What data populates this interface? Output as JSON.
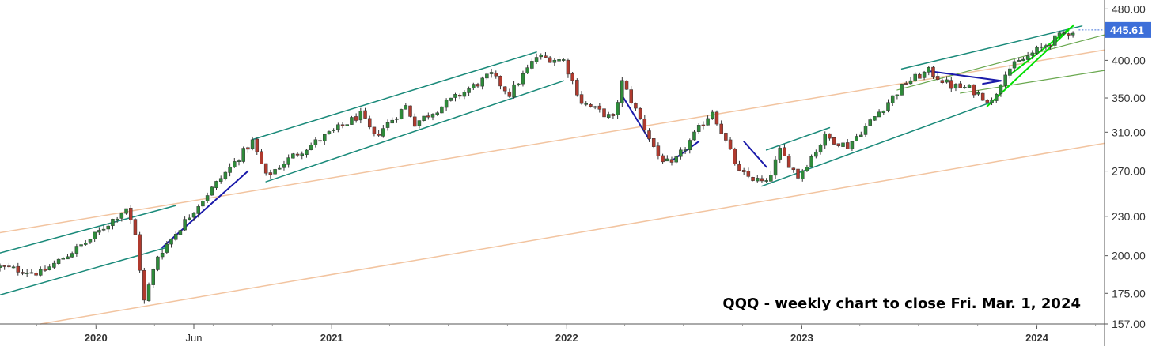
{
  "chart_data": {
    "type": "candlestick",
    "title": "",
    "annotation": "QQQ - weekly chart to close Fri. Mar. 1, 2024",
    "xlabel": "",
    "ylabel": "",
    "y_scale": "log",
    "ylim": [
      157,
      490
    ],
    "xlim": [
      "2019-08-05",
      "2024-04-15"
    ],
    "grid": false,
    "y_ticks": [
      "480.00",
      "400.00",
      "350.00",
      "310.00",
      "270.00",
      "230.00",
      "200.00",
      "175.00",
      "157.00"
    ],
    "x_ticks": [
      {
        "label": "2020",
        "date": "2020-01-01",
        "major": true
      },
      {
        "label": "Jun",
        "date": "2020-06-01",
        "major": false
      },
      {
        "label": "2021",
        "date": "2021-01-01",
        "major": true
      },
      {
        "label": "2022",
        "date": "2022-01-01",
        "major": true
      },
      {
        "label": "2023",
        "date": "2023-01-01",
        "major": true
      },
      {
        "label": "2024",
        "date": "2024-01-01",
        "major": true
      }
    ],
    "last_price": {
      "label": "445.61",
      "value": 445.61
    },
    "price_anchors": [
      {
        "date": "2019-08-05",
        "close": 192
      },
      {
        "date": "2019-10-07",
        "close": 188
      },
      {
        "date": "2019-12-23",
        "close": 212
      },
      {
        "date": "2020-02-17",
        "close": 237
      },
      {
        "date": "2020-03-02",
        "close": 215
      },
      {
        "date": "2020-03-16",
        "close": 170
      },
      {
        "date": "2020-04-06",
        "close": 200
      },
      {
        "date": "2020-06-08",
        "close": 240
      },
      {
        "date": "2020-08-31",
        "close": 300
      },
      {
        "date": "2020-09-21",
        "close": 265
      },
      {
        "date": "2020-11-02",
        "close": 285
      },
      {
        "date": "2021-02-15",
        "close": 330
      },
      {
        "date": "2021-03-08",
        "close": 305
      },
      {
        "date": "2021-04-26",
        "close": 340
      },
      {
        "date": "2021-05-10",
        "close": 320
      },
      {
        "date": "2021-09-06",
        "close": 380
      },
      {
        "date": "2021-10-04",
        "close": 355
      },
      {
        "date": "2021-11-15",
        "close": 405
      },
      {
        "date": "2021-12-27",
        "close": 400
      },
      {
        "date": "2022-01-24",
        "close": 345
      },
      {
        "date": "2022-03-14",
        "close": 325
      },
      {
        "date": "2022-03-28",
        "close": 370
      },
      {
        "date": "2022-05-23",
        "close": 285
      },
      {
        "date": "2022-06-13",
        "close": 275
      },
      {
        "date": "2022-08-15",
        "close": 335
      },
      {
        "date": "2022-09-26",
        "close": 268
      },
      {
        "date": "2022-11-07",
        "close": 258
      },
      {
        "date": "2022-11-28",
        "close": 290
      },
      {
        "date": "2022-12-26",
        "close": 265
      },
      {
        "date": "2023-02-06",
        "close": 305
      },
      {
        "date": "2023-03-13",
        "close": 295
      },
      {
        "date": "2023-06-12",
        "close": 370
      },
      {
        "date": "2023-07-17",
        "close": 385
      },
      {
        "date": "2023-08-21",
        "close": 365
      },
      {
        "date": "2023-09-18",
        "close": 362
      },
      {
        "date": "2023-10-23",
        "close": 345
      },
      {
        "date": "2023-11-13",
        "close": 385
      },
      {
        "date": "2023-12-25",
        "close": 410
      },
      {
        "date": "2024-02-12",
        "close": 440
      },
      {
        "date": "2024-03-01",
        "close": 445.61
      }
    ],
    "trendlines": [
      {
        "color": "#1a8a7a",
        "width": 1.5,
        "from": {
          "date": "2019-08-05",
          "price": 202
        },
        "to": {
          "date": "2020-05-04",
          "price": 239
        }
      },
      {
        "color": "#1a8a7a",
        "width": 1.5,
        "from": {
          "date": "2019-08-05",
          "price": 174
        },
        "to": {
          "date": "2020-04-20",
          "price": 206
        }
      },
      {
        "color": "#1a8a7a",
        "width": 1.5,
        "from": {
          "date": "2020-08-31",
          "price": 302
        },
        "to": {
          "date": "2021-11-15",
          "price": 412
        }
      },
      {
        "color": "#1a8a7a",
        "width": 1.5,
        "from": {
          "date": "2020-09-21",
          "price": 260
        },
        "to": {
          "date": "2021-12-27",
          "price": 372
        }
      },
      {
        "color": "#1a8a7a",
        "width": 1.5,
        "from": {
          "date": "2022-11-07",
          "price": 291
        },
        "to": {
          "date": "2023-02-13",
          "price": 315
        }
      },
      {
        "color": "#1a8a7a",
        "width": 1.5,
        "from": {
          "date": "2022-10-31",
          "price": 256
        },
        "to": {
          "date": "2023-10-23",
          "price": 345
        }
      },
      {
        "color": "#1a8a7a",
        "width": 1.5,
        "from": {
          "date": "2023-06-05",
          "price": 388
        },
        "to": {
          "date": "2024-03-11",
          "price": 452
        }
      },
      {
        "color": "#f2c4a0",
        "width": 1.5,
        "from": {
          "date": "2019-08-05",
          "price": 217
        },
        "to": {
          "date": "2024-04-15",
          "price": 415
        }
      },
      {
        "color": "#f2c4a0",
        "width": 1.5,
        "from": {
          "date": "2019-10-07",
          "price": 157
        },
        "to": {
          "date": "2024-04-15",
          "price": 298
        }
      },
      {
        "color": "#6aa84f",
        "width": 1.2,
        "from": {
          "date": "2023-05-29",
          "price": 360
        },
        "to": {
          "date": "2024-04-15",
          "price": 438
        }
      },
      {
        "color": "#6aa84f",
        "width": 1.2,
        "from": {
          "date": "2023-09-04",
          "price": 356
        },
        "to": {
          "date": "2024-04-15",
          "price": 386
        }
      },
      {
        "color": "#00e000",
        "width": 2,
        "from": {
          "date": "2023-10-16",
          "price": 340
        },
        "to": {
          "date": "2024-02-19",
          "price": 445
        }
      },
      {
        "color": "#00e000",
        "width": 2,
        "from": {
          "date": "2023-11-20",
          "price": 380
        },
        "to": {
          "date": "2024-02-26",
          "price": 452
        }
      },
      {
        "color": "#1a1aaa",
        "width": 2,
        "from": {
          "date": "2020-04-13",
          "price": 206
        },
        "to": {
          "date": "2020-08-24",
          "price": 270
        }
      },
      {
        "color": "#1a1aaa",
        "width": 2,
        "from": {
          "date": "2022-03-28",
          "price": 353
        },
        "to": {
          "date": "2022-05-09",
          "price": 302
        }
      },
      {
        "color": "#1a1aaa",
        "width": 2,
        "from": {
          "date": "2022-06-13",
          "price": 280
        },
        "to": {
          "date": "2022-07-25",
          "price": 300
        }
      },
      {
        "color": "#1a1aaa",
        "width": 2,
        "from": {
          "date": "2022-10-03",
          "price": 300
        },
        "to": {
          "date": "2022-11-07",
          "price": 274
        }
      },
      {
        "color": "#1a1aaa",
        "width": 2,
        "from": {
          "date": "2023-07-17",
          "price": 385
        },
        "to": {
          "date": "2023-11-06",
          "price": 372
        }
      },
      {
        "color": "#1a1aaa",
        "width": 2,
        "from": {
          "date": "2023-10-09",
          "price": 368
        },
        "to": {
          "date": "2023-11-06",
          "price": 372
        }
      }
    ],
    "colors": {
      "up_candle": "#2e8b3a",
      "down_candle": "#b03a2e",
      "axis": "#555555",
      "last_price_bg": "#3d6fd9"
    }
  }
}
